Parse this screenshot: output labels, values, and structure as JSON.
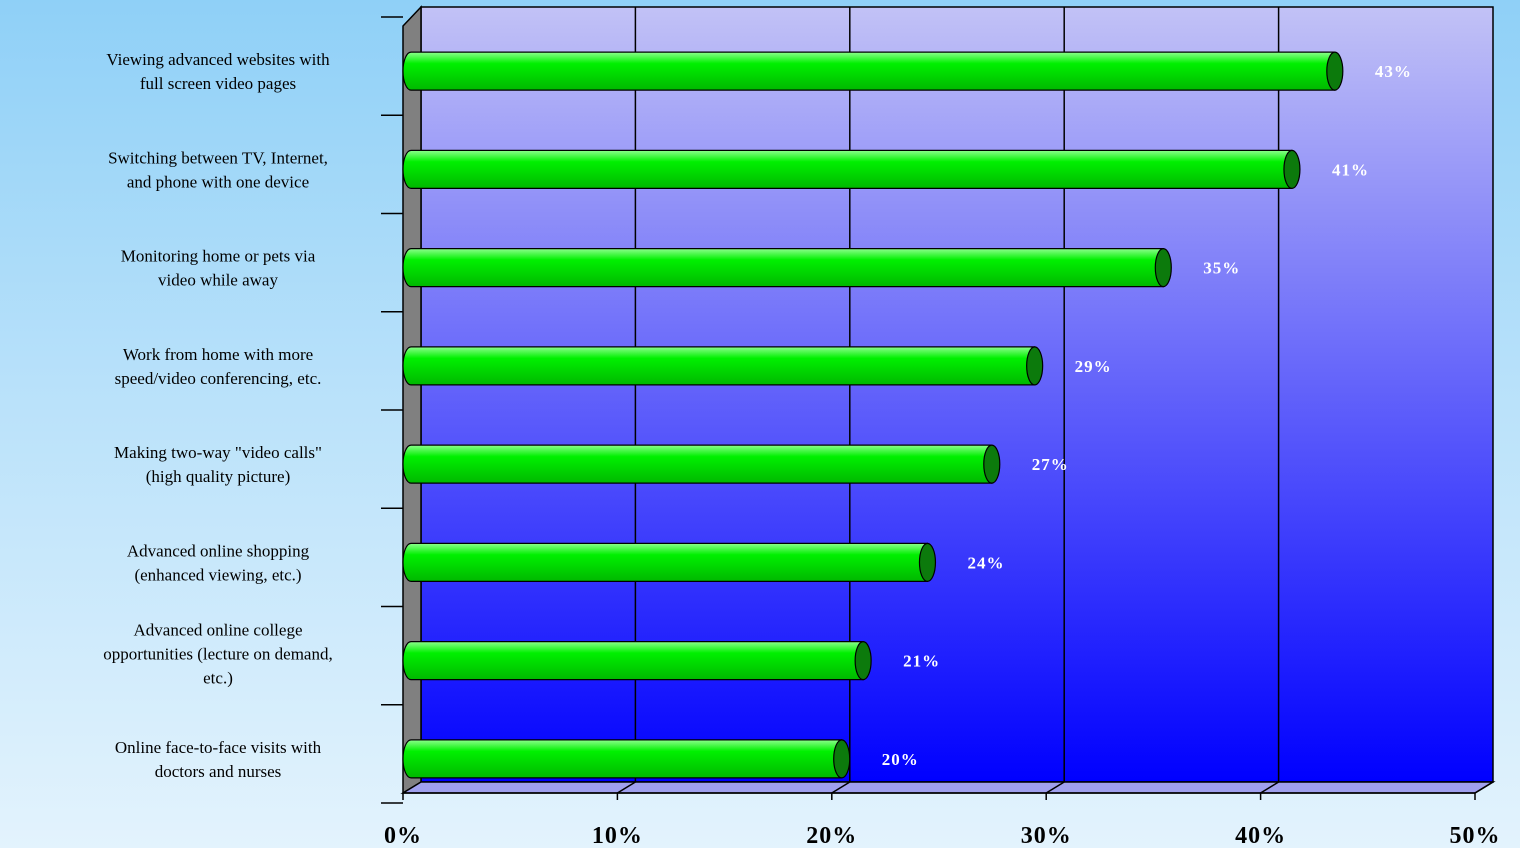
{
  "chart_data": {
    "type": "bar",
    "orientation": "horizontal",
    "categories": [
      [
        "Viewing advanced websites with",
        "full screen video pages"
      ],
      [
        "Switching between TV, Internet,",
        "and phone with one device"
      ],
      [
        "Monitoring home or pets via",
        "video while away"
      ],
      [
        "Work from home with more",
        "speed/video conferencing, etc."
      ],
      [
        "Making two-way \"video calls\"",
        "(high quality picture)"
      ],
      [
        "Advanced online shopping",
        "(enhanced viewing, etc.)"
      ],
      [
        "Advanced online college",
        "opportunities (lecture on demand,",
        "etc.)"
      ],
      [
        "Online face-to-face visits with",
        "doctors and nurses"
      ]
    ],
    "values": [
      43,
      41,
      35,
      29,
      27,
      24,
      21,
      20
    ],
    "data_labels": [
      "43%",
      "41%",
      "35%",
      "29%",
      "27%",
      "24%",
      "21%",
      "20%"
    ],
    "xticks": [
      "0%",
      "10%",
      "20%",
      "30%",
      "40%",
      "50%"
    ],
    "xlim": [
      0,
      50
    ],
    "grid": true,
    "legend": "none",
    "colors": {
      "bar": "#00ee00",
      "bar_dark": "#0c7a0c",
      "plot_top": "#c2c2f6",
      "plot_bottom": "#0000ff",
      "side_wall": "#808080",
      "floor": "#a0a0ee"
    }
  }
}
